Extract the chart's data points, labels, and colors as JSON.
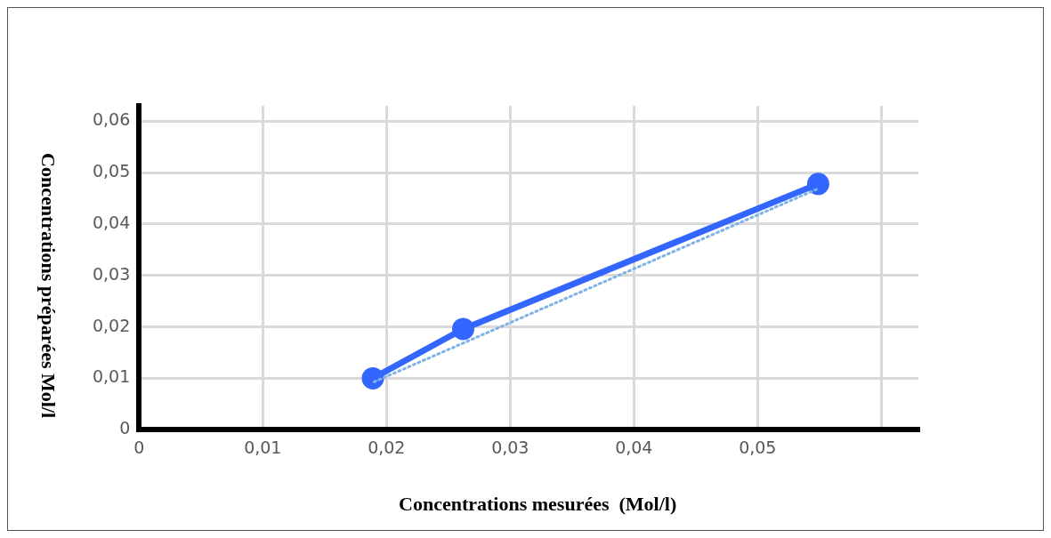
{
  "chart_data": {
    "type": "line",
    "xlabel": "Concentrations mesurées  (Mol/l)",
    "ylabel": "Concentrations préparées Mol/l",
    "x": [
      0.0189,
      0.0262,
      0.0549
    ],
    "series": [
      {
        "color": "#3366ff",
        "values": [
          0.01,
          0.0196,
          0.0478
        ]
      },
      {
        "type": "line",
        "color": "#7fb2e5",
        "line_style": "dotted",
        "marker": "none",
        "x": [
          0.019,
          0.055
        ],
        "values": [
          0.0093,
          0.047
        ]
      }
    ],
    "xlim": [
      0,
      0.063
    ],
    "xticks": [
      0,
      {
        "value": 0.01,
        "label": "0,01"
      },
      {
        "value": 0.02,
        "label": "0,02"
      },
      {
        "value": 0.03,
        "label": "0,03"
      },
      {
        "value": 0.04,
        "label": "0,04"
      },
      {
        "value": 0.05,
        "label": "0,05"
      },
      {
        "value": 0.06,
        "label": null
      }
    ],
    "ylim": [
      0,
      0.063
    ],
    "yticks": [
      0,
      {
        "value": 0.01,
        "label": "0,01"
      },
      {
        "value": 0.02,
        "label": "0,02"
      },
      {
        "value": 0.03,
        "label": "0,03"
      },
      {
        "value": 0.04,
        "label": "0,04"
      },
      {
        "value": 0.05,
        "label": "0,05"
      },
      {
        "value": 0.06,
        "label": "0,06"
      }
    ],
    "grid": true,
    "legend": false,
    "marker": "circle",
    "line_style": "solid"
  }
}
